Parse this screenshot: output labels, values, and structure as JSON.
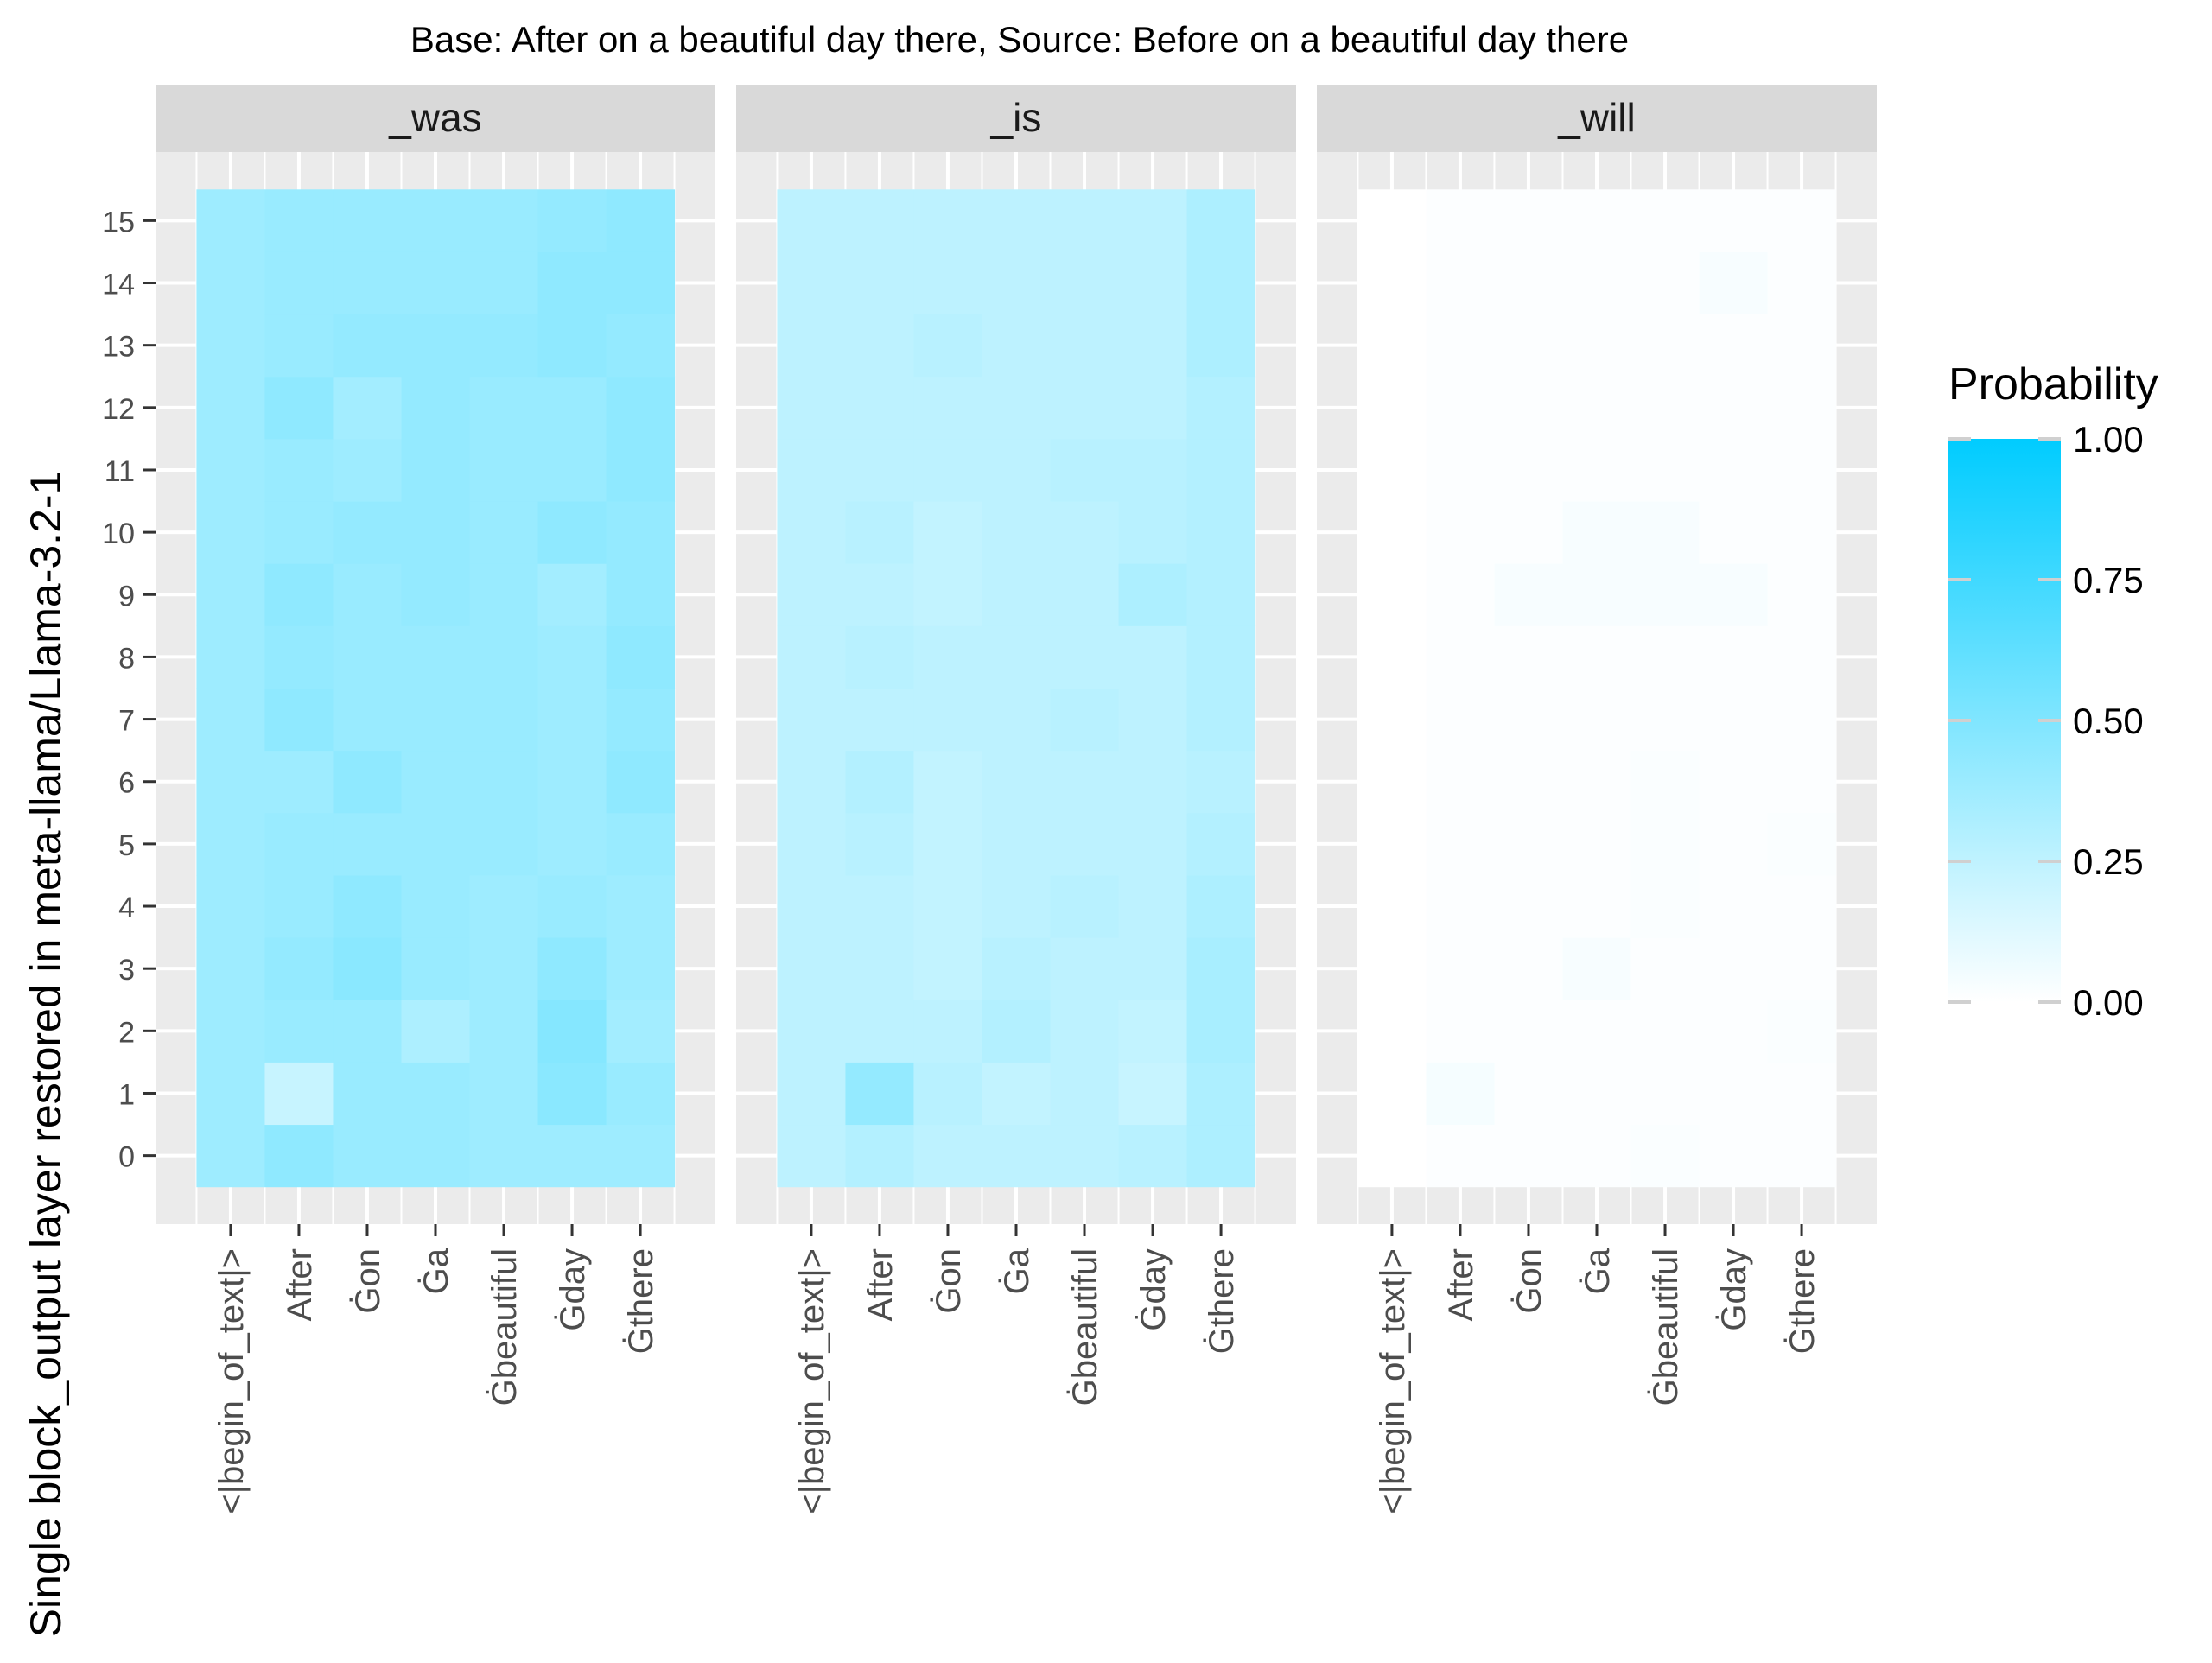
{
  "chart_data": {
    "type": "heatmap",
    "title": "Base: After on a beautiful day there, Source: Before on a beautiful day there",
    "ylabel": "Single block_output layer restored in meta-llama/Llama-3.2-1",
    "xlabel": "",
    "x": [
      "<|begin_of_text|>",
      "After",
      "Ġon",
      "Ġa",
      "Ġbeautiful",
      "Ġday",
      "Ġthere"
    ],
    "x_display": [
      "<|begin_of_text|>",
      "After",
      "Ġon",
      "Ġa",
      "Ġbeautiful",
      "Ġday",
      "Ġthere"
    ],
    "y": [
      0,
      1,
      2,
      3,
      4,
      5,
      6,
      7,
      8,
      9,
      10,
      11,
      12,
      13,
      14,
      15
    ],
    "y_tick_labels": [
      "0",
      "1",
      "2",
      "3",
      "4",
      "5",
      "6",
      "7",
      "8",
      "9",
      "10",
      "11",
      "12",
      "13",
      "14",
      "15"
    ],
    "facets": [
      {
        "name": "_was",
        "values": [
          [
            0.38,
            0.44,
            0.4,
            0.4,
            0.38,
            0.38,
            0.38
          ],
          [
            0.38,
            0.22,
            0.4,
            0.4,
            0.38,
            0.46,
            0.4
          ],
          [
            0.38,
            0.4,
            0.4,
            0.32,
            0.38,
            0.48,
            0.36
          ],
          [
            0.38,
            0.42,
            0.46,
            0.4,
            0.38,
            0.44,
            0.38
          ],
          [
            0.38,
            0.4,
            0.44,
            0.4,
            0.38,
            0.4,
            0.38
          ],
          [
            0.38,
            0.4,
            0.4,
            0.4,
            0.4,
            0.38,
            0.4
          ],
          [
            0.38,
            0.38,
            0.44,
            0.4,
            0.4,
            0.38,
            0.44
          ],
          [
            0.38,
            0.44,
            0.4,
            0.4,
            0.4,
            0.38,
            0.42
          ],
          [
            0.38,
            0.42,
            0.4,
            0.4,
            0.4,
            0.38,
            0.44
          ],
          [
            0.38,
            0.44,
            0.4,
            0.42,
            0.4,
            0.36,
            0.42
          ],
          [
            0.38,
            0.4,
            0.42,
            0.42,
            0.4,
            0.44,
            0.42
          ],
          [
            0.38,
            0.4,
            0.38,
            0.42,
            0.4,
            0.4,
            0.44
          ],
          [
            0.38,
            0.44,
            0.36,
            0.42,
            0.4,
            0.4,
            0.44
          ],
          [
            0.38,
            0.4,
            0.42,
            0.42,
            0.42,
            0.44,
            0.42
          ],
          [
            0.38,
            0.4,
            0.4,
            0.4,
            0.4,
            0.44,
            0.44
          ],
          [
            0.38,
            0.4,
            0.4,
            0.4,
            0.4,
            0.42,
            0.44
          ]
        ]
      },
      {
        "name": "_is",
        "values": [
          [
            0.26,
            0.3,
            0.26,
            0.26,
            0.26,
            0.28,
            0.32
          ],
          [
            0.26,
            0.42,
            0.28,
            0.24,
            0.26,
            0.22,
            0.32
          ],
          [
            0.26,
            0.26,
            0.26,
            0.3,
            0.26,
            0.24,
            0.34
          ],
          [
            0.26,
            0.26,
            0.24,
            0.28,
            0.26,
            0.26,
            0.34
          ],
          [
            0.26,
            0.26,
            0.24,
            0.26,
            0.28,
            0.26,
            0.32
          ],
          [
            0.26,
            0.28,
            0.24,
            0.26,
            0.26,
            0.26,
            0.3
          ],
          [
            0.26,
            0.3,
            0.24,
            0.26,
            0.26,
            0.26,
            0.28
          ],
          [
            0.26,
            0.26,
            0.26,
            0.26,
            0.28,
            0.26,
            0.3
          ],
          [
            0.26,
            0.28,
            0.26,
            0.26,
            0.26,
            0.26,
            0.3
          ],
          [
            0.26,
            0.26,
            0.24,
            0.26,
            0.26,
            0.32,
            0.3
          ],
          [
            0.26,
            0.28,
            0.24,
            0.26,
            0.26,
            0.28,
            0.3
          ],
          [
            0.26,
            0.26,
            0.26,
            0.26,
            0.28,
            0.28,
            0.3
          ],
          [
            0.26,
            0.26,
            0.26,
            0.26,
            0.26,
            0.26,
            0.3
          ],
          [
            0.26,
            0.26,
            0.28,
            0.26,
            0.26,
            0.26,
            0.32
          ],
          [
            0.26,
            0.26,
            0.26,
            0.26,
            0.26,
            0.26,
            0.32
          ],
          [
            0.26,
            0.26,
            0.26,
            0.26,
            0.26,
            0.26,
            0.32
          ]
        ]
      },
      {
        "name": "_will",
        "values": [
          [
            0.0,
            0.01,
            0.01,
            0.01,
            0.02,
            0.01,
            0.01
          ],
          [
            0.0,
            0.04,
            0.01,
            0.01,
            0.01,
            0.01,
            0.01
          ],
          [
            0.0,
            0.01,
            0.01,
            0.01,
            0.01,
            0.01,
            0.02
          ],
          [
            0.0,
            0.01,
            0.01,
            0.03,
            0.01,
            0.01,
            0.01
          ],
          [
            0.0,
            0.01,
            0.01,
            0.01,
            0.02,
            0.01,
            0.01
          ],
          [
            0.0,
            0.01,
            0.01,
            0.01,
            0.02,
            0.01,
            0.02
          ],
          [
            0.0,
            0.01,
            0.01,
            0.01,
            0.02,
            0.01,
            0.01
          ],
          [
            0.0,
            0.01,
            0.01,
            0.01,
            0.01,
            0.01,
            0.01
          ],
          [
            0.0,
            0.01,
            0.01,
            0.01,
            0.01,
            0.01,
            0.01
          ],
          [
            0.0,
            0.01,
            0.03,
            0.03,
            0.03,
            0.03,
            0.01
          ],
          [
            0.0,
            0.01,
            0.01,
            0.03,
            0.03,
            0.01,
            0.01
          ],
          [
            0.0,
            0.01,
            0.01,
            0.01,
            0.01,
            0.01,
            0.01
          ],
          [
            0.0,
            0.01,
            0.01,
            0.01,
            0.01,
            0.01,
            0.01
          ],
          [
            0.0,
            0.01,
            0.01,
            0.01,
            0.01,
            0.01,
            0.01
          ],
          [
            0.0,
            0.01,
            0.01,
            0.01,
            0.01,
            0.03,
            0.01
          ],
          [
            0.0,
            0.01,
            0.01,
            0.01,
            0.01,
            0.01,
            0.01
          ]
        ]
      }
    ],
    "legend": {
      "title": "Probability",
      "placement": "right",
      "ticks": [
        1.0,
        0.75,
        0.5,
        0.25,
        0.0
      ],
      "tick_labels": [
        "1.00",
        "0.75",
        "0.50",
        "0.25",
        "0.00"
      ],
      "color_low": "#ffffff",
      "color_high": "#00ccff",
      "range": [
        0,
        1
      ]
    },
    "panel_background": "#ebebeb",
    "strip_background": "#d9d9d9",
    "grid": true
  }
}
